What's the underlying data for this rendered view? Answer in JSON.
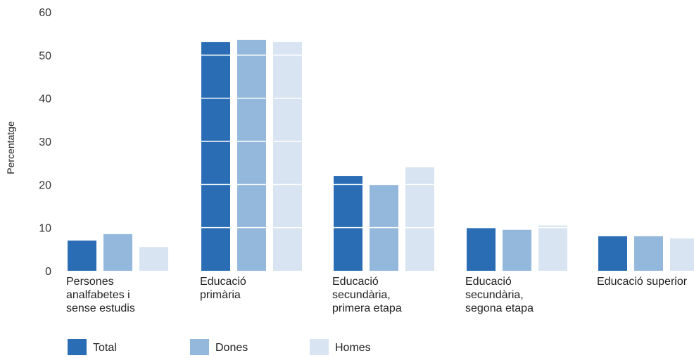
{
  "chart_data": {
    "type": "bar",
    "ylabel": "Percentatge",
    "ylim": [
      0,
      60
    ],
    "yticks": [
      "0",
      "10",
      "20",
      "30",
      "40",
      "50",
      "60"
    ],
    "grid": "white horizontal lines over bars",
    "legend_position": "bottom-left",
    "categories": [
      [
        "Persones",
        "analfabetes i",
        "sense estudis"
      ],
      [
        "Educació",
        "primària"
      ],
      [
        "Educació",
        "secundària,",
        "primera etapa"
      ],
      [
        "Educació",
        "secundària,",
        "segona etapa"
      ],
      [
        "Educació superior"
      ]
    ],
    "series": [
      {
        "name": "Total",
        "color": "#2a6db5",
        "values": [
          7,
          53,
          22,
          10,
          8
        ]
      },
      {
        "name": "Dones",
        "color": "#94b8dc",
        "values": [
          8.5,
          53.5,
          20,
          9.5,
          8
        ]
      },
      {
        "name": "Homes",
        "color": "#d8e4f2",
        "values": [
          5.5,
          53,
          24,
          10.5,
          7.5
        ]
      }
    ]
  }
}
